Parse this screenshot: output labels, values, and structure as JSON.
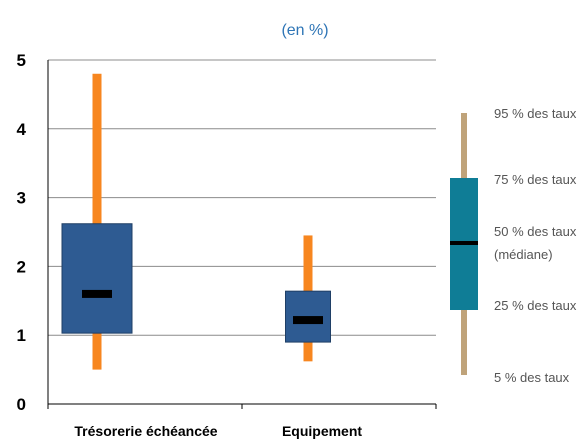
{
  "chart_data": {
    "type": "box",
    "unit_label": "(en %)",
    "ylim": [
      0,
      5
    ],
    "y_ticks": [
      "0",
      "1",
      "2",
      "3",
      "4",
      "5"
    ],
    "grid": true,
    "categories": [
      "Trésorerie échéancée",
      "Equipement"
    ],
    "boxes": [
      {
        "category": "Trésorerie échéancée",
        "p5": 0.5,
        "p25": 1.03,
        "median": 1.6,
        "p75": 2.62,
        "p95": 4.8
      },
      {
        "category": "Equipement",
        "p5": 0.62,
        "p25": 0.9,
        "median": 1.22,
        "p75": 1.64,
        "p95": 2.45
      }
    ],
    "legend": {
      "position": "right",
      "items": [
        "95 % des taux",
        "75 % des taux",
        "50 % des taux",
        "(médiane)",
        "25 % des taux",
        "5 % des taux"
      ]
    },
    "colors": {
      "box_fill": "#2e5b92",
      "box_stroke": "#1f3f66",
      "whisker": "#f7861f",
      "median": "#000000",
      "grid": "#8c8c8c",
      "legend_box": "#0f7d96",
      "legend_whisker": "#bfa37a"
    }
  }
}
